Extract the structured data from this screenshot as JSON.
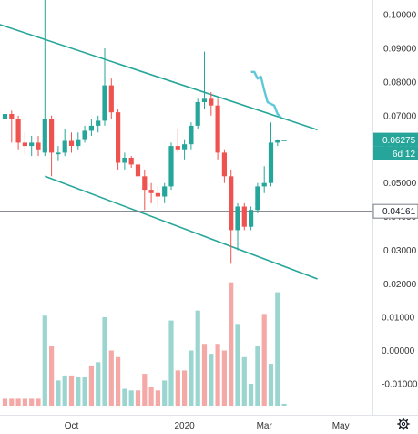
{
  "chart_data": {
    "type": "candlestick",
    "price_axis": {
      "ticks": [
        "0.10000",
        "0.09000",
        "0.08000",
        "0.07000",
        "0.06000",
        "0.05000",
        "0.04000",
        "0.03000",
        "0.02000"
      ],
      "range": [
        0.0185,
        0.1045
      ]
    },
    "volume_axis": {
      "ticks": [
        "0.01000",
        "0.00000",
        "-0.01000"
      ],
      "range": [
        -0.0187,
        0.0208
      ]
    },
    "x_axis": {
      "labels": [
        "Oct",
        "2020",
        "Mar",
        "May"
      ]
    },
    "last_price": {
      "label": "0.06275",
      "value": 0.06275,
      "color": "#26a69a"
    },
    "countdown": {
      "label": "6d 12",
      "color": "#26a69a"
    },
    "horizontal_line": {
      "label": "0.04161",
      "value": 0.04161,
      "color": "#787b86"
    },
    "colors": {
      "up": "#26a69a",
      "down": "#ef5350",
      "up_volume": "#9ad6cf",
      "down_volume": "#f4a9a7",
      "ma": "#5fc8d8",
      "channel": "#26a69a"
    },
    "candles": [
      {
        "o": 0.069,
        "h": 0.072,
        "l": 0.066,
        "c": 0.0705,
        "v": -0.0145
      },
      {
        "o": 0.0705,
        "h": 0.0715,
        "l": 0.062,
        "c": 0.069,
        "v": -0.0145
      },
      {
        "o": 0.069,
        "h": 0.07,
        "l": 0.06,
        "c": 0.062,
        "v": -0.0145
      },
      {
        "o": 0.062,
        "h": 0.065,
        "l": 0.0585,
        "c": 0.061,
        "v": -0.0145
      },
      {
        "o": 0.061,
        "h": 0.064,
        "l": 0.058,
        "c": 0.062,
        "v": -0.0145
      },
      {
        "o": 0.062,
        "h": 0.064,
        "l": 0.058,
        "c": 0.06,
        "v": -0.0145
      },
      {
        "o": 0.059,
        "h": 0.1045,
        "l": 0.058,
        "c": 0.069,
        "v": 0.0105
      },
      {
        "o": 0.069,
        "h": 0.07,
        "l": 0.052,
        "c": 0.059,
        "v": 0.0015
      },
      {
        "o": 0.0585,
        "h": 0.061,
        "l": 0.0565,
        "c": 0.059,
        "v": -0.009
      },
      {
        "o": 0.059,
        "h": 0.066,
        "l": 0.058,
        "c": 0.0625,
        "v": -0.0075
      },
      {
        "o": 0.0625,
        "h": 0.065,
        "l": 0.059,
        "c": 0.061,
        "v": -0.0075
      },
      {
        "o": 0.061,
        "h": 0.065,
        "l": 0.06,
        "c": 0.063,
        "v": -0.008
      },
      {
        "o": 0.063,
        "h": 0.067,
        "l": 0.062,
        "c": 0.0655,
        "v": -0.008
      },
      {
        "o": 0.0655,
        "h": 0.069,
        "l": 0.064,
        "c": 0.067,
        "v": -0.0045
      },
      {
        "o": 0.067,
        "h": 0.07,
        "l": 0.065,
        "c": 0.0685,
        "v": -0.0035
      },
      {
        "o": 0.0685,
        "h": 0.09,
        "l": 0.067,
        "c": 0.079,
        "v": 0.01
      },
      {
        "o": 0.079,
        "h": 0.081,
        "l": 0.069,
        "c": 0.071,
        "v": 0.0
      },
      {
        "o": 0.071,
        "h": 0.072,
        "l": 0.054,
        "c": 0.056,
        "v": -0.002
      },
      {
        "o": 0.056,
        "h": 0.059,
        "l": 0.054,
        "c": 0.0575,
        "v": -0.0115
      },
      {
        "o": 0.0575,
        "h": 0.058,
        "l": 0.0545,
        "c": 0.0555,
        "v": -0.012
      },
      {
        "o": 0.0555,
        "h": 0.058,
        "l": 0.05,
        "c": 0.052,
        "v": -0.012
      },
      {
        "o": 0.052,
        "h": 0.054,
        "l": 0.042,
        "c": 0.048,
        "v": -0.007
      },
      {
        "o": 0.048,
        "h": 0.05,
        "l": 0.044,
        "c": 0.047,
        "v": -0.011
      },
      {
        "o": 0.047,
        "h": 0.049,
        "l": 0.043,
        "c": 0.046,
        "v": -0.012
      },
      {
        "o": 0.046,
        "h": 0.05,
        "l": 0.044,
        "c": 0.049,
        "v": -0.009
      },
      {
        "o": 0.049,
        "h": 0.062,
        "l": 0.048,
        "c": 0.061,
        "v": 0.009
      },
      {
        "o": 0.061,
        "h": 0.066,
        "l": 0.059,
        "c": 0.06,
        "v": -0.006
      },
      {
        "o": 0.06,
        "h": 0.063,
        "l": 0.057,
        "c": 0.0615,
        "v": -0.006
      },
      {
        "o": 0.0615,
        "h": 0.068,
        "l": 0.06,
        "c": 0.067,
        "v": 0.0
      },
      {
        "o": 0.067,
        "h": 0.075,
        "l": 0.066,
        "c": 0.074,
        "v": 0.012
      },
      {
        "o": 0.074,
        "h": 0.089,
        "l": 0.072,
        "c": 0.075,
        "v": 0.002
      },
      {
        "o": 0.075,
        "h": 0.077,
        "l": 0.07,
        "c": 0.073,
        "v": -0.001
      },
      {
        "o": 0.073,
        "h": 0.075,
        "l": 0.057,
        "c": 0.059,
        "v": 0.002
      },
      {
        "o": 0.059,
        "h": 0.06,
        "l": 0.05,
        "c": 0.052,
        "v": 0.0
      },
      {
        "o": 0.052,
        "h": 0.054,
        "l": 0.026,
        "c": 0.036,
        "v": 0.0205
      },
      {
        "o": 0.036,
        "h": 0.044,
        "l": 0.03,
        "c": 0.043,
        "v": 0.008
      },
      {
        "o": 0.043,
        "h": 0.044,
        "l": 0.036,
        "c": 0.037,
        "v": -0.002
      },
      {
        "o": 0.037,
        "h": 0.043,
        "l": 0.036,
        "c": 0.042,
        "v": -0.01
      },
      {
        "o": 0.042,
        "h": 0.05,
        "l": 0.041,
        "c": 0.049,
        "v": 0.0015
      },
      {
        "o": 0.049,
        "h": 0.055,
        "l": 0.047,
        "c": 0.05,
        "v": 0.011
      },
      {
        "o": 0.05,
        "h": 0.068,
        "l": 0.049,
        "c": 0.062,
        "v": -0.004
      },
      {
        "o": 0.062,
        "h": 0.063,
        "l": 0.061,
        "c": 0.06275,
        "v": 0.0175
      },
      {
        "o": 0.06275,
        "h": 0.06275,
        "l": 0.06275,
        "c": 0.06275,
        "v": -0.016
      }
    ],
    "volume_colors": [
      "down",
      "down",
      "down",
      "down",
      "down",
      "down",
      "up",
      "down",
      "up",
      "up",
      "down",
      "up",
      "up",
      "down",
      "up",
      "up",
      "down",
      "down",
      "up",
      "up",
      "down",
      "down",
      "down",
      "down",
      "up",
      "up",
      "down",
      "down",
      "up",
      "up",
      "down",
      "up",
      "down",
      "down",
      "down",
      "up",
      "up",
      "up",
      "up",
      "down",
      "up",
      "up",
      "up"
    ],
    "ma_line": [
      [
        0.083,
        0.083
      ],
      [
        0.081,
        0.0816
      ],
      [
        0.0775,
        0.074
      ],
      [
        0.0735,
        0.073
      ],
      [
        0.0705,
        0.0695
      ]
    ],
    "channel": {
      "upper": {
        "from": {
          "bar": -3,
          "price": 0.0985
        },
        "to": {
          "bar": 47,
          "price": 0.0658
        }
      },
      "lower": {
        "from": {
          "bar": 6,
          "price": 0.052
        },
        "to": {
          "bar": 47,
          "price": 0.0215
        }
      }
    }
  }
}
